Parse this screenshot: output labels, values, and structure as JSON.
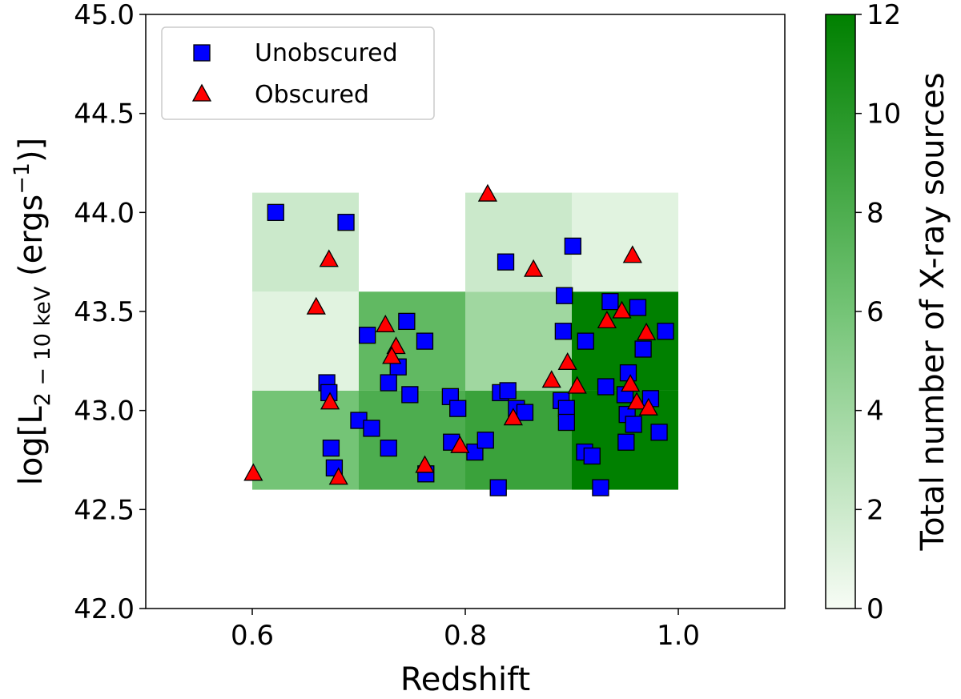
{
  "chart_data": {
    "type": "scatter",
    "title": "",
    "xlabel": "Redshift",
    "ylabel": {
      "prefix": "log[L",
      "subscript": "2 − 10 keV",
      "middle": " (ergs",
      "superscript": "−1",
      "suffix": ")]"
    },
    "xlim": [
      0.5,
      1.1
    ],
    "ylim": [
      42.0,
      45.0
    ],
    "xticks": [
      "0.6",
      "0.8",
      "1.0"
    ],
    "xtick_values": [
      0.6,
      0.8,
      1.0
    ],
    "yticks": [
      "42.0",
      "42.5",
      "43.0",
      "43.5",
      "44.0",
      "44.5",
      "45.0"
    ],
    "ytick_values": [
      42.0,
      42.5,
      43.0,
      43.5,
      44.0,
      44.5,
      45.0
    ],
    "grid": false,
    "legend_position": "top-left",
    "heatmap": {
      "x_edges": [
        0.6,
        0.7,
        0.8,
        0.9,
        1.0
      ],
      "y_edges": [
        42.6,
        43.1,
        43.6,
        44.1
      ],
      "counts": [
        [
          6,
          8,
          9,
          12
        ],
        [
          1,
          7,
          4,
          12
        ],
        [
          2,
          0,
          2,
          1
        ]
      ],
      "colorbar": {
        "label": "Total number of X-ray sources",
        "min": 0,
        "max": 12,
        "ticks": [
          "0",
          "2",
          "4",
          "6",
          "8",
          "10",
          "12"
        ],
        "tick_values": [
          0,
          2,
          4,
          6,
          8,
          10,
          12
        ],
        "color_low": "#f7fcf5",
        "color_mid": "#74c476",
        "color_high": "#008000"
      }
    },
    "series": [
      {
        "name": "Unobscured",
        "marker": "square",
        "color": "#0000ff",
        "points": [
          [
            0.622,
            44.0
          ],
          [
            0.688,
            43.95
          ],
          [
            0.67,
            43.14
          ],
          [
            0.672,
            43.09
          ],
          [
            0.7,
            42.95
          ],
          [
            0.674,
            42.81
          ],
          [
            0.677,
            42.71
          ],
          [
            0.708,
            43.38
          ],
          [
            0.745,
            43.45
          ],
          [
            0.737,
            43.22
          ],
          [
            0.748,
            43.08
          ],
          [
            0.728,
            43.14
          ],
          [
            0.712,
            42.91
          ],
          [
            0.728,
            42.81
          ],
          [
            0.762,
            43.35
          ],
          [
            0.763,
            42.68
          ],
          [
            0.786,
            43.07
          ],
          [
            0.793,
            43.01
          ],
          [
            0.787,
            42.84
          ],
          [
            0.809,
            42.79
          ],
          [
            0.819,
            42.85
          ],
          [
            0.831,
            42.61
          ],
          [
            0.838,
            43.75
          ],
          [
            0.833,
            43.09
          ],
          [
            0.84,
            43.1
          ],
          [
            0.848,
            43.01
          ],
          [
            0.856,
            42.99
          ],
          [
            0.901,
            43.83
          ],
          [
            0.893,
            43.58
          ],
          [
            0.892,
            43.4
          ],
          [
            0.89,
            43.05
          ],
          [
            0.895,
            43.01
          ],
          [
            0.895,
            42.94
          ],
          [
            0.913,
            43.35
          ],
          [
            0.912,
            42.79
          ],
          [
            0.919,
            42.77
          ],
          [
            0.927,
            42.61
          ],
          [
            0.936,
            43.55
          ],
          [
            0.932,
            43.12
          ],
          [
            0.962,
            43.52
          ],
          [
            0.967,
            43.31
          ],
          [
            0.953,
            43.19
          ],
          [
            0.95,
            43.08
          ],
          [
            0.952,
            42.98
          ],
          [
            0.958,
            42.93
          ],
          [
            0.974,
            43.06
          ],
          [
            0.951,
            42.84
          ],
          [
            0.982,
            42.89
          ],
          [
            0.988,
            43.4
          ]
        ]
      },
      {
        "name": "Obscured",
        "marker": "triangle",
        "color": "#ff0000",
        "points": [
          [
            0.601,
            42.68
          ],
          [
            0.66,
            43.52
          ],
          [
            0.672,
            43.76
          ],
          [
            0.673,
            43.04
          ],
          [
            0.681,
            42.66
          ],
          [
            0.725,
            43.43
          ],
          [
            0.735,
            43.32
          ],
          [
            0.731,
            43.27
          ],
          [
            0.762,
            42.72
          ],
          [
            0.795,
            42.82
          ],
          [
            0.821,
            44.09
          ],
          [
            0.845,
            42.96
          ],
          [
            0.864,
            43.71
          ],
          [
            0.881,
            43.15
          ],
          [
            0.896,
            43.24
          ],
          [
            0.905,
            43.12
          ],
          [
            0.933,
            43.45
          ],
          [
            0.947,
            43.5
          ],
          [
            0.957,
            43.78
          ],
          [
            0.955,
            43.13
          ],
          [
            0.961,
            43.04
          ],
          [
            0.97,
            43.39
          ],
          [
            0.972,
            43.01
          ]
        ]
      }
    ]
  }
}
